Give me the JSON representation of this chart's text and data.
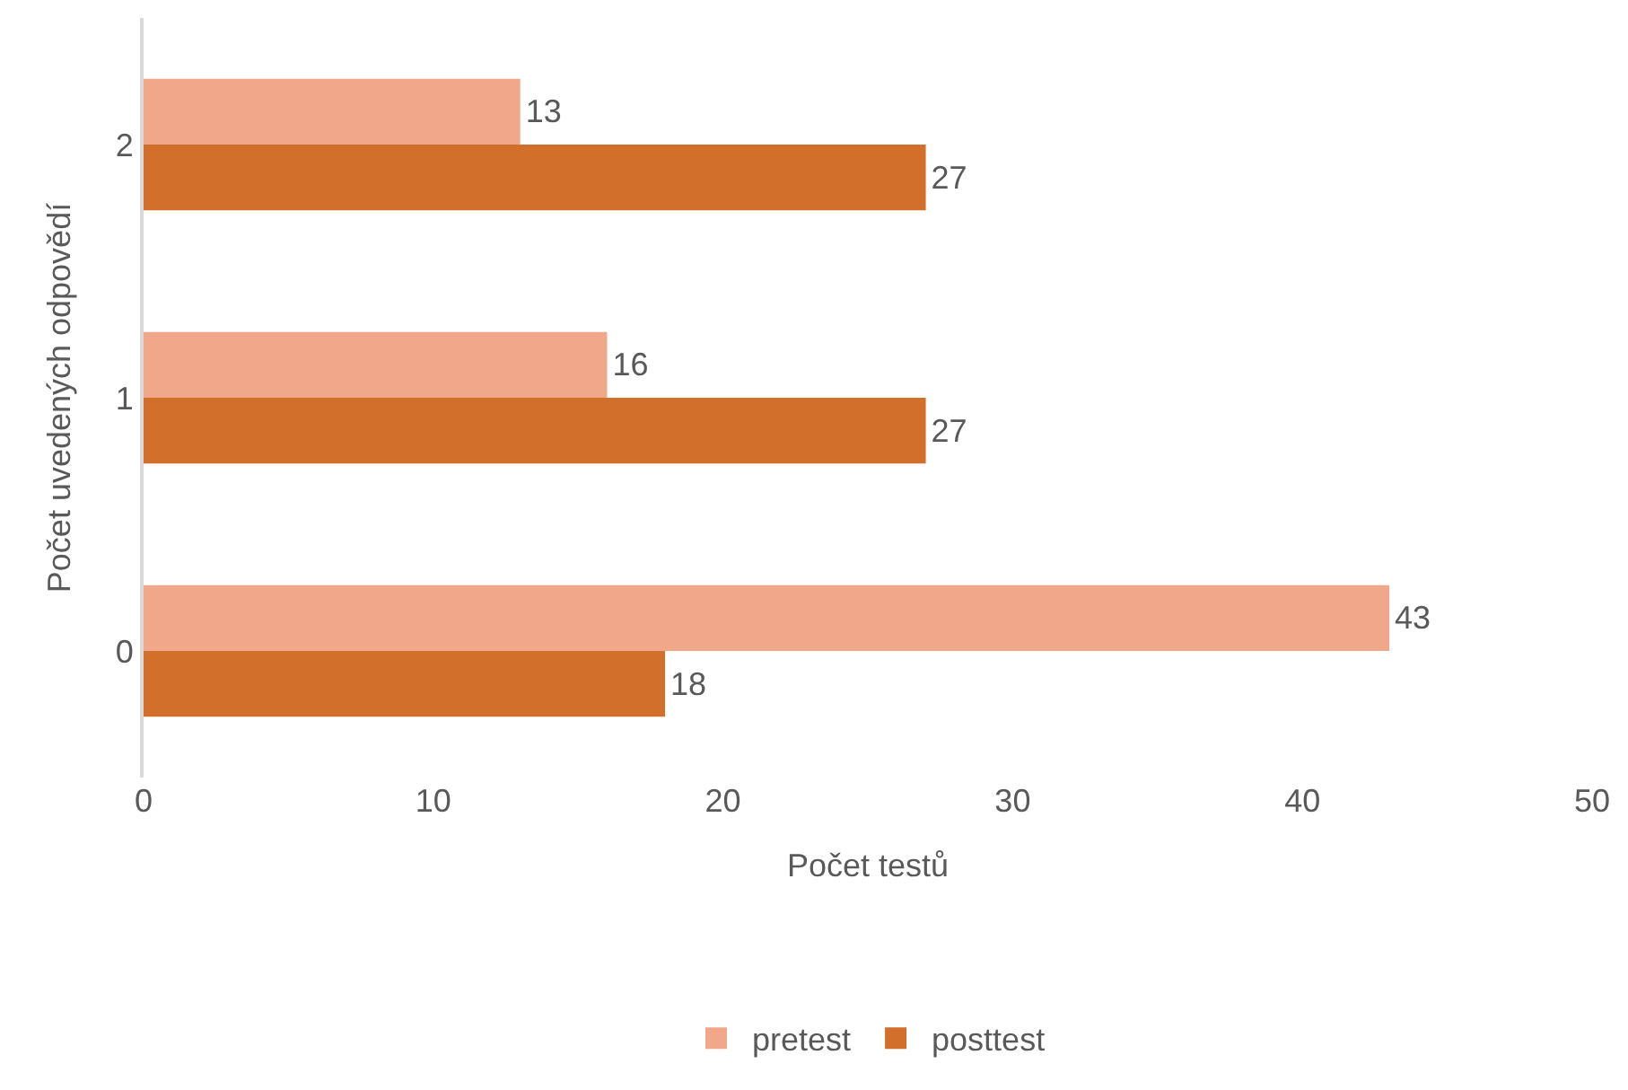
{
  "chart_data": {
    "type": "bar",
    "orientation": "horizontal",
    "xlabel": "Počet testů",
    "ylabel": "Počet uvedených odpovědí",
    "categories": [
      "2",
      "1",
      "0"
    ],
    "series": [
      {
        "name": "pretest",
        "color": "#f1a88a",
        "values": [
          13,
          16,
          43
        ]
      },
      {
        "name": "posttest",
        "color": "#d26f2b",
        "values": [
          27,
          27,
          18
        ]
      }
    ],
    "xlim": [
      0,
      50
    ],
    "xticks": [
      0,
      10,
      20,
      30,
      40,
      50
    ],
    "data_labels": true,
    "grid": false,
    "legend": "bottom"
  }
}
